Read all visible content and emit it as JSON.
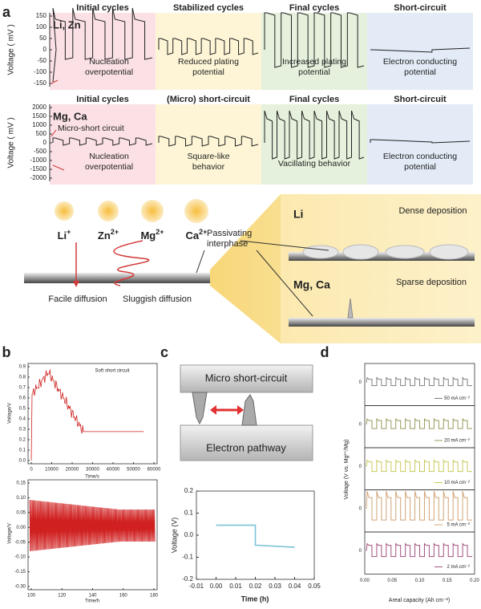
{
  "panel_a": {
    "label": "a",
    "strips": [
      {
        "system": "Li, Zn",
        "y_axis_label": "Voltage ( mV )",
        "yticks": [
          "150",
          "100",
          "50",
          "0",
          "-50",
          "-100",
          "-150"
        ],
        "stages": [
          {
            "title": "Initial cycles",
            "note": [
              "Nucleation",
              "overpotential"
            ]
          },
          {
            "title": "Stabilized cycles",
            "note": [
              "Reduced plating",
              "potential"
            ]
          },
          {
            "title": "Final cycles",
            "note": [
              "Increased plating",
              "potential"
            ]
          },
          {
            "title": "Short-circuit",
            "note": [
              "Electron conducting",
              "potential"
            ]
          }
        ]
      },
      {
        "system": "Mg, Ca",
        "y_axis_label": "Voltage ( mV )",
        "callout": "Micro-short circuit",
        "yticks": [
          "2000",
          "1500",
          "1000",
          "500",
          "0",
          "-500",
          "-1000",
          "-1500",
          "-2000"
        ],
        "stages": [
          {
            "title": "Initial cycles",
            "note": [
              "Nucleation",
              "overpotential"
            ]
          },
          {
            "title": "(Micro) short-circuit",
            "note": [
              "Square-like",
              "behavior"
            ]
          },
          {
            "title": "Final cycles",
            "note": [
              "Vacillating behavior"
            ]
          },
          {
            "title": "Short-circuit",
            "note": [
              "Electron conducting",
              "potential"
            ]
          }
        ]
      }
    ],
    "schematic": {
      "ions": [
        {
          "symbol": "Li",
          "charge": "+"
        },
        {
          "symbol": "Zn",
          "charge": "2+"
        },
        {
          "symbol": "Mg",
          "charge": "2+"
        },
        {
          "symbol": "Ca",
          "charge": "2+"
        }
      ],
      "interphase": [
        "Passivating",
        "interphase"
      ],
      "facile": "Facile diffusion",
      "sluggish": "Sluggish diffusion",
      "dense": {
        "metal": "Li",
        "note": "Dense deposition"
      },
      "sparse": {
        "metal": "Mg, Ca",
        "note": "Sparse deposition"
      }
    }
  },
  "panel_b": {
    "label": "b",
    "top": {
      "annotation": "Soft short circuit",
      "y_axis_label": "Voltage/V",
      "x_axis_label": "Time/s",
      "yticks": [
        "0.9",
        "0.8",
        "0.7",
        "0.6",
        "0.5",
        "0.4",
        "0.3",
        "0.2",
        "0.1",
        "0.0"
      ],
      "xticks": [
        "0",
        "10000",
        "20000",
        "30000",
        "40000",
        "50000",
        "60000"
      ]
    },
    "bottom": {
      "y_axis_label": "Voltage/V",
      "x_axis_label": "Time/h",
      "yticks": [
        "0.15",
        "0.10",
        "0.05",
        "0.00",
        "-0.05",
        "-0.10",
        "-0.15",
        "-0.30"
      ],
      "xticks": [
        "100",
        "120",
        "140",
        "160",
        "180"
      ]
    }
  },
  "panel_c": {
    "label": "c",
    "diagram": {
      "top": "Micro short-circuit",
      "bottom": "Electron pathway"
    },
    "plot": {
      "y_axis_label": "Voltage (V)",
      "x_axis_label": "Time (h)",
      "color": "#7cc4d8",
      "xlim": [
        -0.01,
        0.05
      ],
      "ylim": [
        -0.2,
        0.2
      ],
      "xticks": [
        -0.01,
        {
          "value": 0,
          "label": "0.00"
        },
        0.01,
        0.02,
        0.03,
        0.04,
        0.05
      ],
      "yticks": [
        0.2,
        0.1,
        {
          "value": 0,
          "label": "0.0"
        },
        -0.1,
        -0.2
      ],
      "series": {
        "x": [
          0,
          0.02,
          0.02,
          0.04
        ],
        "y": [
          0.045,
          0.045,
          -0.045,
          -0.055
        ]
      }
    }
  },
  "panel_d": {
    "label": "d",
    "y_axis_label": "Voltage (V vs. Mg²⁺/Mg)",
    "x_axis_label": "Areal capacity (Ah cm⁻²)",
    "xticks": [
      "0.00",
      "0.05",
      "0.10",
      "0.15",
      "0.20"
    ],
    "strips": [
      {
        "rate": "50 mA cm⁻²",
        "ytick": "0",
        "color": "#808080"
      },
      {
        "rate": "20 mA cm⁻²",
        "ytick": "0",
        "color": "#9b9a5c"
      },
      {
        "rate": "10 mA cm⁻²",
        "ytick": "0",
        "color": "#c9c95a"
      },
      {
        "rate": "5 mA cm⁻²",
        "ytick": "0",
        "color": "#d2a477"
      },
      {
        "rate": "2 mA cm⁻²",
        "ytick": "0",
        "color": "#a2517f"
      }
    ]
  }
}
